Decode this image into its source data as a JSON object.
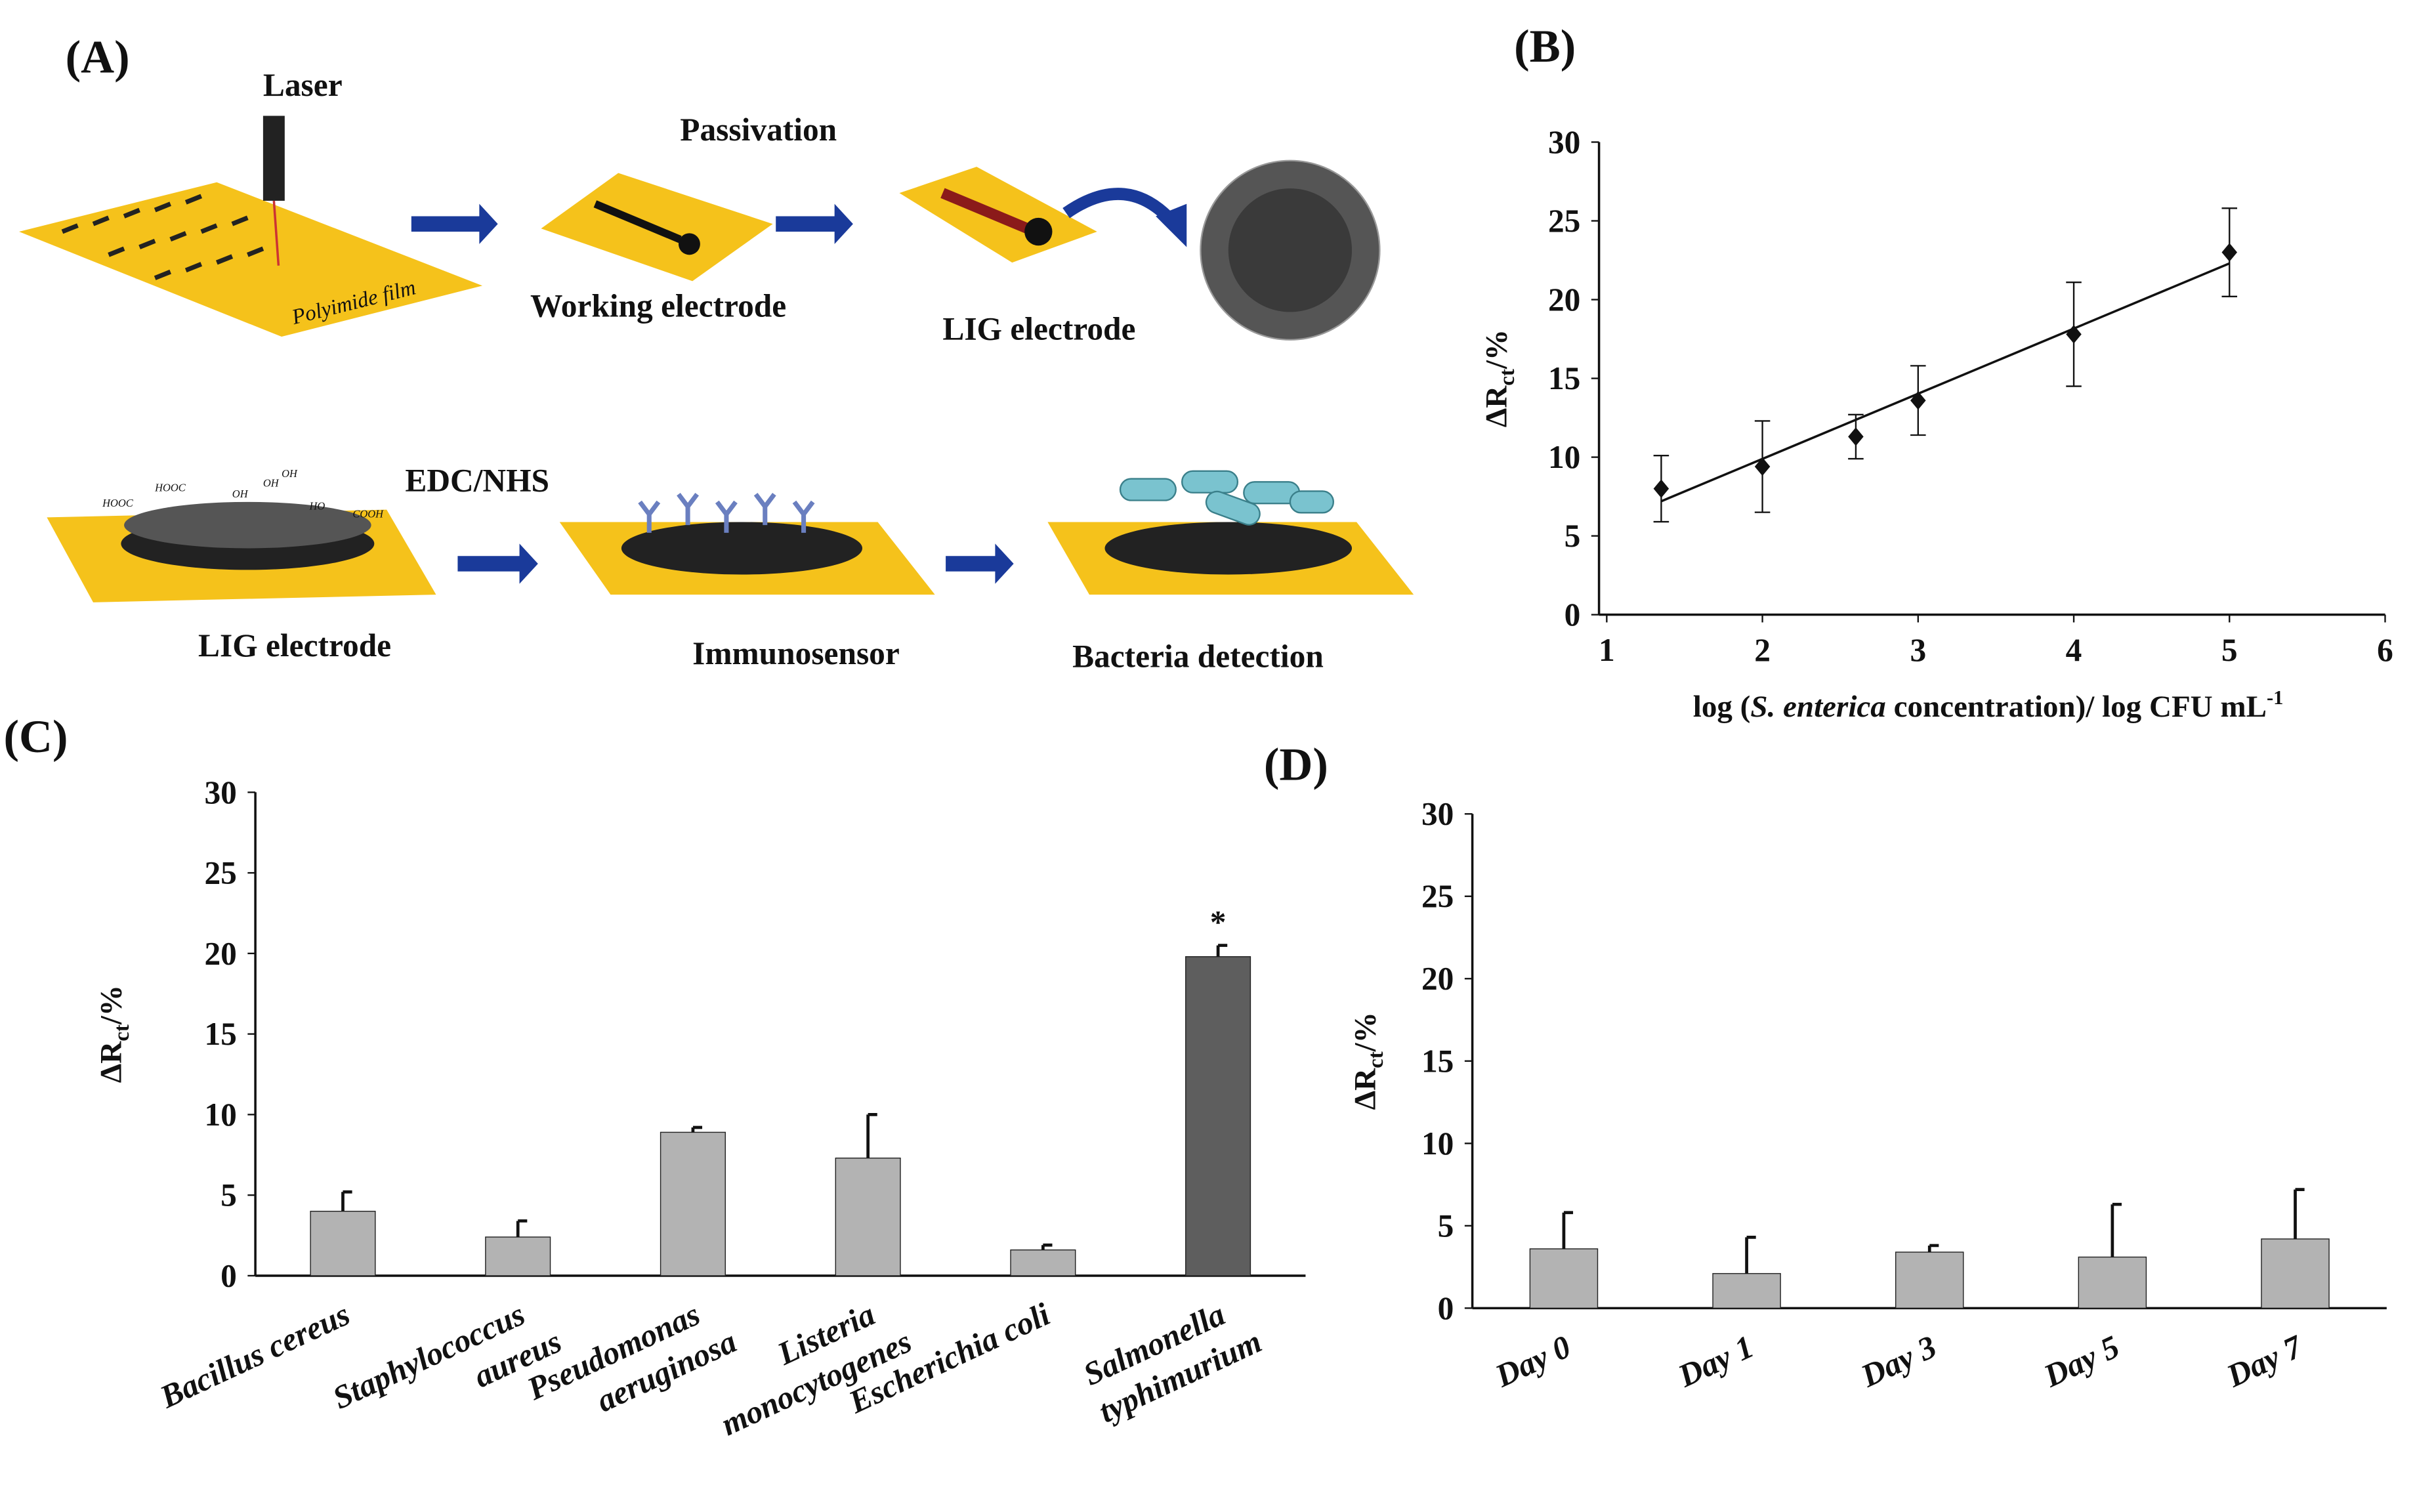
{
  "diagram": {
    "label": "(A)",
    "laser": "Laser",
    "passivation": "Passivation",
    "film": "Polyimide film",
    "working_electrode": "Working  electrode",
    "lig_electrode_1": "LIG electrode",
    "edc_nhs": "EDC/NHS",
    "lig_electrode_2": "LIG electrode",
    "immunosensor": "Immunosensor",
    "bacteria_detection": "Bacteria detection",
    "chem_labels": [
      "HOOC",
      "HOOC",
      "OH",
      "OH",
      "OH",
      "HO",
      "COOH"
    ]
  },
  "chart_data": [
    {
      "type": "scatter",
      "label": "(B)",
      "x": [
        1.35,
        2,
        2.6,
        3,
        4,
        5
      ],
      "values": [
        8,
        9.4,
        11.3,
        13.6,
        17.8,
        23
      ],
      "errors": [
        2.1,
        2.9,
        1.4,
        2.2,
        3.3,
        2.8
      ],
      "trendline": {
        "x": [
          1.35,
          5
        ],
        "y": [
          7.2,
          22.3
        ]
      },
      "color": "#111111",
      "xlim": [
        1,
        6
      ],
      "xticks": [
        1,
        2,
        3,
        4,
        5,
        6
      ],
      "ylim": [
        0,
        30
      ],
      "yticks": [
        0,
        5,
        10,
        15,
        20,
        25,
        30
      ],
      "ylabel": {
        "main": "ΔR",
        "sub": "ct",
        "unit": "/%"
      },
      "xlabel": {
        "pre": "log (",
        "italic": "S. enterica",
        "post": " concentration)/ log CFU mL",
        "sup": "-1"
      }
    },
    {
      "type": "bar",
      "label": "(C)",
      "categories": [
        [
          "Bacillus cereus"
        ],
        [
          "Staphylococcus",
          "aureus"
        ],
        [
          "Pseudomonas",
          "aeruginosa"
        ],
        [
          "Listeria",
          "monocytogenes"
        ],
        [
          "Escherichia coli"
        ],
        [
          "Salmonella",
          "typhimurium"
        ]
      ],
      "values": [
        4,
        2.4,
        8.9,
        7.3,
        1.6,
        19.8
      ],
      "errors": [
        1.2,
        1.0,
        0.3,
        2.7,
        0.3,
        0.7
      ],
      "colors": [
        "#b3b3b3",
        "#b3b3b3",
        "#b3b3b3",
        "#b3b3b3",
        "#b3b3b3",
        "#5e5e5e"
      ],
      "annotation": "*",
      "ylim": [
        0,
        30
      ],
      "yticks": [
        0,
        5,
        10,
        15,
        20,
        25,
        30
      ],
      "ylabel": {
        "main": "ΔR",
        "sub": "ct",
        "unit": "/%"
      }
    },
    {
      "type": "bar",
      "label": "(D)",
      "categories": [
        [
          "Day 0"
        ],
        [
          "Day 1"
        ],
        [
          "Day 3"
        ],
        [
          "Day 5"
        ],
        [
          "Day 7"
        ]
      ],
      "values": [
        3.6,
        2.1,
        3.4,
        3.1,
        4.2
      ],
      "errors": [
        2.2,
        2.2,
        0.4,
        3.2,
        3.0
      ],
      "colors": [
        "#b3b3b3",
        "#b3b3b3",
        "#b3b3b3",
        "#b3b3b3",
        "#b3b3b3"
      ],
      "ylim": [
        0,
        30
      ],
      "yticks": [
        0,
        5,
        10,
        15,
        20,
        25,
        30
      ],
      "ylabel": {
        "main": "ΔR",
        "sub": "ct",
        "unit": "/%"
      }
    }
  ]
}
